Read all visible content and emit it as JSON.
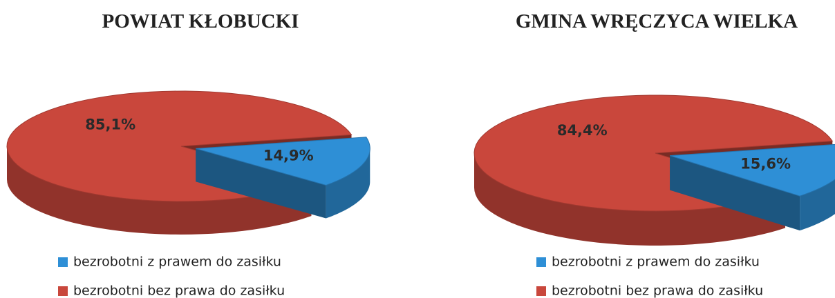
{
  "chart_data": [
    {
      "type": "pie",
      "title": "POWIAT KŁOBUCKI",
      "categories": [
        "bezrobotni z prawem do zasiłku",
        "bezrobotni bez prawa do zasiłku"
      ],
      "values": [
        14.9,
        85.1
      ],
      "value_labels": [
        "14,9%",
        "85,1%"
      ],
      "colors": [
        "#2e8fd6",
        "#c9473c"
      ]
    },
    {
      "type": "pie",
      "title": "GMINA WRĘCZYCA WIELKA",
      "categories": [
        "bezrobotni z prawem do zasiłku",
        "bezrobotni bez prawa do zasiłku"
      ],
      "values": [
        15.6,
        84.4
      ],
      "value_labels": [
        "15,6%",
        "84,4%"
      ],
      "colors": [
        "#2e8fd6",
        "#c9473c"
      ]
    }
  ]
}
